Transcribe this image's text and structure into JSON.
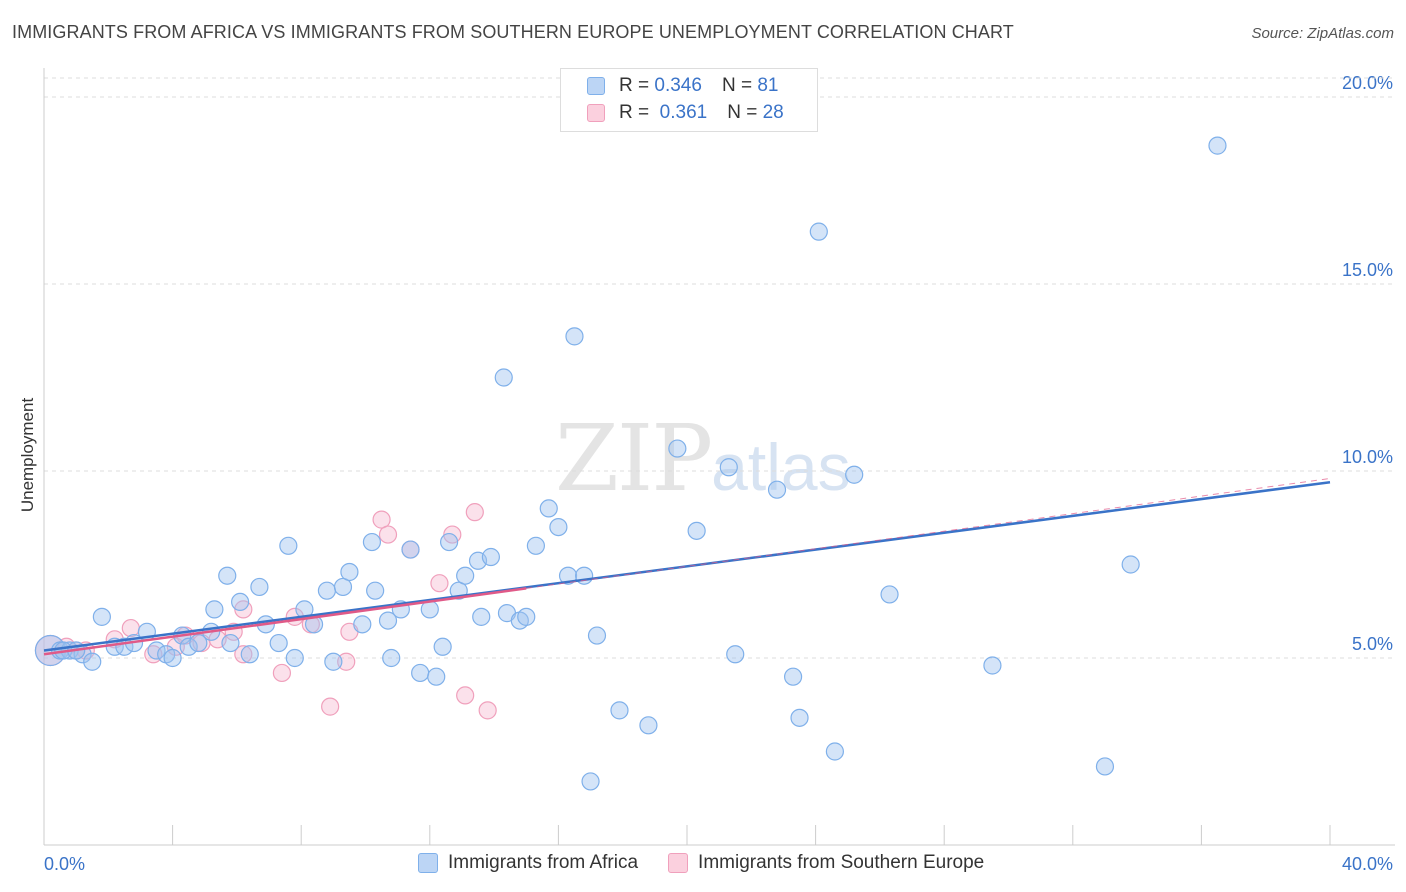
{
  "title": "IMMIGRANTS FROM AFRICA VS IMMIGRANTS FROM SOUTHERN EUROPE UNEMPLOYMENT CORRELATION CHART",
  "source": "Source: ZipAtlas.com",
  "watermark": {
    "zip": "ZIP",
    "atlas": "atlas"
  },
  "legend_top": [
    {
      "r_label": "R = ",
      "r_value": "0.346",
      "n_label": "N = ",
      "n_value": "81"
    },
    {
      "r_label": "R = ",
      "r_value": "0.361",
      "n_label": "N = ",
      "n_value": "28"
    }
  ],
  "chart_data": {
    "type": "scatter",
    "title": "IMMIGRANTS FROM AFRICA VS IMMIGRANTS FROM SOUTHERN EUROPE UNEMPLOYMENT CORRELATION CHART",
    "xlabel": "",
    "ylabel": "Unemployment",
    "xlim": [
      0,
      40
    ],
    "ylim": [
      0,
      20
    ],
    "x_tick_labels": [
      "0.0%",
      "40.0%"
    ],
    "y_ticks": [
      5,
      10,
      15,
      20
    ],
    "y_tick_labels": [
      "5.0%",
      "10.0%",
      "15.0%",
      "20.0%"
    ],
    "grid": true,
    "legend_position": "bottom",
    "colors": {
      "africa": "#7fb0ea",
      "southern_europe": "#f0a0bc",
      "africa_line": "#3a73c8",
      "se_line": "#e05a88",
      "axis_text": "#3a73c8"
    },
    "series": [
      {
        "name": "Immigrants from Africa",
        "r": 0.346,
        "n": 81,
        "trend": {
          "x": [
            0,
            40
          ],
          "y": [
            5.2,
            9.7
          ]
        },
        "points": [
          [
            0.2,
            5.2
          ],
          [
            0.5,
            5.2
          ],
          [
            0.8,
            5.2
          ],
          [
            1.2,
            5.1
          ],
          [
            1.5,
            4.9
          ],
          [
            1.8,
            6.1
          ],
          [
            2.2,
            5.3
          ],
          [
            2.5,
            5.3
          ],
          [
            2.8,
            5.4
          ],
          [
            3.2,
            5.7
          ],
          [
            3.5,
            5.2
          ],
          [
            3.8,
            5.1
          ],
          [
            4.0,
            5.0
          ],
          [
            4.3,
            5.6
          ],
          [
            4.5,
            5.3
          ],
          [
            4.8,
            5.4
          ],
          [
            5.2,
            5.7
          ],
          [
            5.3,
            6.3
          ],
          [
            5.7,
            7.2
          ],
          [
            5.8,
            5.4
          ],
          [
            6.1,
            6.5
          ],
          [
            6.4,
            5.1
          ],
          [
            6.7,
            6.9
          ],
          [
            6.9,
            5.9
          ],
          [
            7.3,
            5.4
          ],
          [
            7.6,
            8.0
          ],
          [
            7.8,
            5.0
          ],
          [
            8.1,
            6.3
          ],
          [
            8.4,
            5.9
          ],
          [
            8.8,
            6.8
          ],
          [
            9.0,
            4.9
          ],
          [
            9.3,
            6.9
          ],
          [
            9.5,
            7.3
          ],
          [
            9.9,
            5.9
          ],
          [
            10.2,
            8.1
          ],
          [
            10.3,
            6.8
          ],
          [
            10.7,
            6.0
          ],
          [
            10.8,
            5.0
          ],
          [
            11.1,
            6.3
          ],
          [
            11.4,
            7.9
          ],
          [
            11.7,
            4.6
          ],
          [
            12.0,
            6.3
          ],
          [
            12.2,
            4.5
          ],
          [
            12.4,
            5.3
          ],
          [
            12.6,
            8.1
          ],
          [
            12.9,
            6.8
          ],
          [
            13.1,
            7.2
          ],
          [
            13.5,
            7.6
          ],
          [
            13.6,
            6.1
          ],
          [
            13.9,
            7.7
          ],
          [
            14.3,
            12.5
          ],
          [
            14.4,
            6.2
          ],
          [
            14.8,
            6.0
          ],
          [
            15.0,
            6.1
          ],
          [
            15.3,
            8.0
          ],
          [
            15.7,
            9.0
          ],
          [
            16.0,
            8.5
          ],
          [
            16.3,
            7.2
          ],
          [
            16.5,
            13.6
          ],
          [
            16.8,
            7.2
          ],
          [
            17.0,
            1.7
          ],
          [
            17.2,
            5.6
          ],
          [
            17.9,
            3.6
          ],
          [
            18.8,
            3.2
          ],
          [
            19.7,
            10.6
          ],
          [
            20.3,
            8.4
          ],
          [
            21.3,
            10.1
          ],
          [
            21.5,
            5.1
          ],
          [
            22.8,
            9.5
          ],
          [
            23.3,
            4.5
          ],
          [
            23.5,
            3.4
          ],
          [
            24.1,
            16.4
          ],
          [
            24.6,
            2.5
          ],
          [
            25.2,
            9.9
          ],
          [
            26.3,
            6.7
          ],
          [
            29.5,
            4.8
          ],
          [
            33.0,
            2.1
          ],
          [
            33.8,
            7.5
          ],
          [
            36.5,
            18.7
          ],
          [
            0.6,
            5.2
          ],
          [
            1.0,
            5.2
          ]
        ]
      },
      {
        "name": "Immigrants from Southern Europe",
        "r": 0.361,
        "n": 28,
        "trend": {
          "x": [
            0,
            40
          ],
          "y": [
            5.1,
            9.8
          ],
          "solid_until": 15.0
        },
        "points": [
          [
            0.2,
            5.2
          ],
          [
            0.7,
            5.3
          ],
          [
            1.3,
            5.2
          ],
          [
            2.2,
            5.5
          ],
          [
            2.7,
            5.8
          ],
          [
            3.4,
            5.1
          ],
          [
            4.1,
            5.3
          ],
          [
            4.4,
            5.6
          ],
          [
            4.9,
            5.4
          ],
          [
            5.4,
            5.5
          ],
          [
            5.9,
            5.7
          ],
          [
            6.2,
            5.1
          ],
          [
            6.2,
            6.3
          ],
          [
            7.4,
            4.6
          ],
          [
            7.8,
            6.1
          ],
          [
            8.3,
            5.9
          ],
          [
            8.9,
            3.7
          ],
          [
            9.4,
            4.9
          ],
          [
            9.5,
            5.7
          ],
          [
            10.5,
            8.7
          ],
          [
            10.7,
            8.3
          ],
          [
            11.4,
            7.9
          ],
          [
            12.3,
            7.0
          ],
          [
            12.7,
            8.3
          ],
          [
            13.1,
            4.0
          ],
          [
            13.4,
            8.9
          ],
          [
            13.8,
            3.6
          ],
          [
            1.0,
            5.2
          ]
        ]
      }
    ]
  },
  "bottom_legend": [
    "Immigrants from Africa",
    "Immigrants from Southern Europe"
  ]
}
